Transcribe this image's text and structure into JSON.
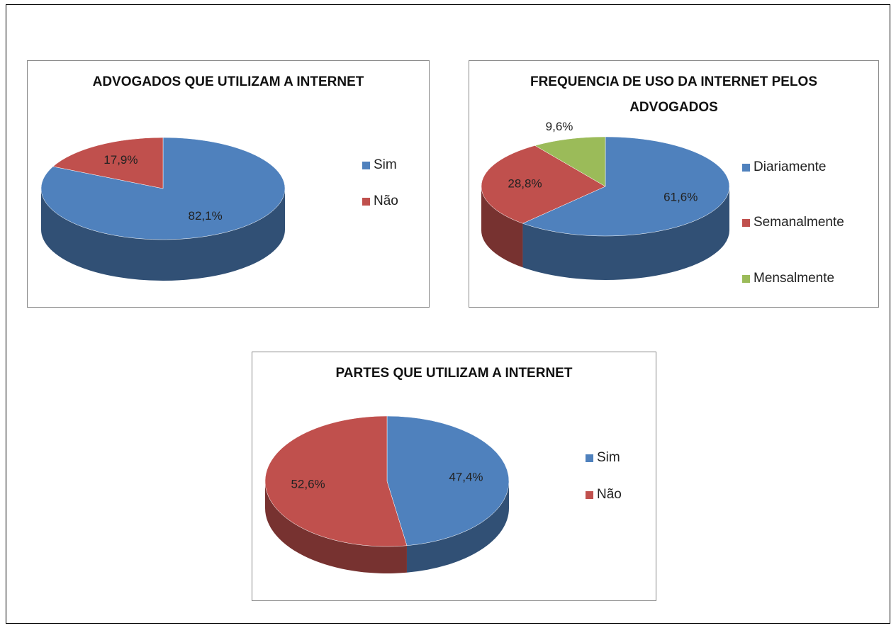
{
  "chart_data": [
    {
      "type": "pie",
      "title": "ADVOGADOS QUE UTILIZAM A INTERNET",
      "categories": [
        "Sim",
        "Não"
      ],
      "values": [
        82.1,
        17.9
      ],
      "value_labels": [
        "82,1%",
        "17,9%"
      ],
      "colors": [
        "#4f81bd",
        "#c0504d"
      ],
      "legend": "right"
    },
    {
      "type": "pie",
      "title": "FREQUENCIA DE USO DA INTERNET PELOS ADVOGADOS",
      "categories": [
        "Diariamente",
        "Semanalmente",
        "Mensalmente"
      ],
      "values": [
        61.6,
        28.8,
        9.6
      ],
      "value_labels": [
        "61,6%",
        "28,8%",
        "9,6%"
      ],
      "colors": [
        "#4f81bd",
        "#c0504d",
        "#9bbb59"
      ],
      "legend": "right"
    },
    {
      "type": "pie",
      "title": "PARTES QUE UTILIZAM A INTERNET",
      "categories": [
        "Sim",
        "Não"
      ],
      "values": [
        47.4,
        52.6
      ],
      "value_labels": [
        "47,4%",
        "52,6%"
      ],
      "colors": [
        "#4f81bd",
        "#c0504d"
      ],
      "legend": "right"
    }
  ]
}
